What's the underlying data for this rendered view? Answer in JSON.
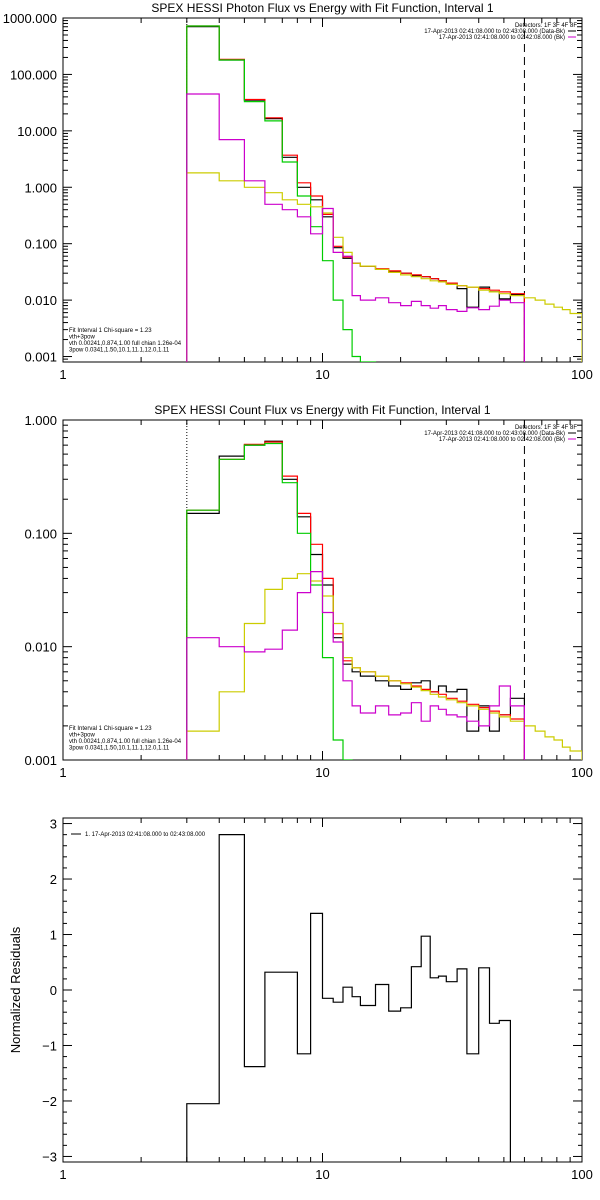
{
  "chart_data": [
    {
      "type": "line",
      "title": "SPEX HESSI Photon Flux vs Energy with Fit Function, Interval 1",
      "xscale": "log",
      "yscale": "log",
      "xlim": [
        1,
        100
      ],
      "ylim": [
        0.0008,
        1000
      ],
      "xticks": [
        {
          "v": 1,
          "label": "1"
        },
        {
          "v": 10,
          "label": "10"
        },
        {
          "v": 100,
          "label": "100"
        }
      ],
      "yticks": [
        {
          "v": 0.001,
          "label": "0.001"
        },
        {
          "v": 0.01,
          "label": "0.010"
        },
        {
          "v": 0.1,
          "label": "0.100"
        },
        {
          "v": 1,
          "label": "1.000"
        },
        {
          "v": 10,
          "label": "10.000"
        },
        {
          "v": 100,
          "label": "100.000"
        },
        {
          "v": 1000,
          "label": "1000.000"
        }
      ],
      "legend_tr": [
        "Detectors: 1F 3F 4F 8F",
        "17-Apr-2013 02:41:08.000 to 02:43:08.000 (Data-Bk)",
        "17-Apr-2013 02:41:08.000 to 02:42:08.000 (Bk)"
      ],
      "legend_bl": [
        "Fit Interval 1    Chi-square = 1.23",
        "vth+3pow",
        "vth 0.00241,0.874,1.00   full chian 1.26e-04",
        "3pow 0.0341,1.50,10.1,11.1,12.0,1.11"
      ],
      "vlines": [
        {
          "x": 3,
          "style": "dotted"
        },
        {
          "x": 60,
          "style": "dashed"
        }
      ],
      "edges": [
        3,
        4,
        5,
        6,
        7,
        8,
        9,
        10,
        11,
        12,
        13,
        14,
        16,
        18,
        20,
        22,
        24,
        26,
        28,
        30,
        33,
        36,
        40,
        44,
        48,
        53,
        60,
        66,
        72,
        78,
        84,
        90,
        100
      ],
      "series": [
        {
          "name": "Data-Bk",
          "color": "#000000",
          "values": [
            700,
            180,
            35,
            16.5,
            3.4,
            1.0,
            0.6,
            0.3,
            0.085,
            0.055,
            0.045,
            0.04,
            0.035,
            0.032,
            0.03,
            0.027,
            0.026,
            0.024,
            0.022,
            0.02,
            0.016,
            0.0075,
            0.017,
            0.014,
            0.0105,
            0.0125
          ]
        },
        {
          "name": "vth+3pow",
          "color": "#ff0000",
          "values": [
            720,
            185,
            36,
            17,
            3.7,
            1.2,
            0.7,
            0.33,
            0.09,
            0.058,
            0.045,
            0.04,
            0.036,
            0.033,
            0.03,
            0.028,
            0.026,
            0.024,
            0.022,
            0.02,
            0.018,
            0.017,
            0.016,
            0.015,
            0.014,
            0.013
          ]
        },
        {
          "name": "vth",
          "color": "#00cc00",
          "values": [
            720,
            180,
            33,
            15,
            2.8,
            0.7,
            0.2,
            0.05,
            0.01,
            0.003,
            0.001,
            0.0004
          ]
        },
        {
          "name": "3pow",
          "color": "#cccc00",
          "values": [
            1.8,
            1.3,
            1.0,
            0.8,
            0.6,
            0.5,
            0.45,
            0.35,
            0.13,
            0.07,
            0.045,
            0.04,
            0.035,
            0.031,
            0.028,
            0.026,
            0.024,
            0.022,
            0.021,
            0.019,
            0.018,
            0.017,
            0.015,
            0.014,
            0.013,
            0.012,
            0.011,
            0.01,
            0.0085,
            0.0075,
            0.0068,
            0.0058
          ]
        },
        {
          "name": "Bk",
          "color": "#cc00cc",
          "values": [
            45,
            7,
            1.3,
            0.5,
            0.4,
            0.3,
            0.15,
            0.42,
            0.07,
            0.06,
            0.012,
            0.01,
            0.011,
            0.009,
            0.008,
            0.0095,
            0.008,
            0.0072,
            0.008,
            0.0068,
            0.0063,
            0.0073,
            0.0068,
            0.0078,
            0.01,
            0.009
          ]
        }
      ]
    },
    {
      "type": "line",
      "title": "SPEX HESSI Count Flux vs Energy with Fit Function, Interval 1",
      "xscale": "log",
      "yscale": "log",
      "xlim": [
        1,
        100
      ],
      "ylim": [
        0.001,
        1
      ],
      "xticks": [
        {
          "v": 1,
          "label": "1"
        },
        {
          "v": 10,
          "label": "10"
        },
        {
          "v": 100,
          "label": "100"
        }
      ],
      "yticks": [
        {
          "v": 0.001,
          "label": "0.001"
        },
        {
          "v": 0.01,
          "label": "0.010"
        },
        {
          "v": 0.1,
          "label": "0.100"
        },
        {
          "v": 1,
          "label": "1.000"
        }
      ],
      "legend_tr": [
        "Detectors: 1F 3F 4F 8F",
        "17-Apr-2013 02:41:08.000 to 02:43:08.000 (Data-Bk)",
        "17-Apr-2013 02:41:08.000 to 02:42:08.000 (Bk)"
      ],
      "legend_bl": [
        "Fit Interval 1    Chi-square = 1.23",
        "vth+3pow",
        "vth 0.00241,0.874,1.00   full chian 1.26e-04",
        "3pow 0.0341,1.50,10.1,11.1,12.0,1.11"
      ],
      "vlines": [
        {
          "x": 3,
          "style": "dotted"
        },
        {
          "x": 60,
          "style": "dashed"
        }
      ],
      "edges": [
        3,
        4,
        5,
        6,
        7,
        8,
        9,
        10,
        11,
        12,
        13,
        14,
        16,
        18,
        20,
        22,
        24,
        26,
        28,
        30,
        33,
        36,
        40,
        44,
        48,
        53,
        60,
        66,
        72,
        78,
        84,
        90,
        100
      ],
      "series": [
        {
          "name": "Data-Bk",
          "color": "#000000",
          "values": [
            0.15,
            0.48,
            0.6,
            0.65,
            0.3,
            0.14,
            0.065,
            0.035,
            0.012,
            0.007,
            0.006,
            0.0055,
            0.005,
            0.0045,
            0.0042,
            0.0048,
            0.005,
            0.004,
            0.0045,
            0.004,
            0.0042,
            0.0018,
            0.003,
            0.0018,
            0.0025,
            0.0035
          ]
        },
        {
          "name": "vth+3pow",
          "color": "#ff0000",
          "values": [
            0.16,
            0.45,
            0.61,
            0.64,
            0.32,
            0.15,
            0.08,
            0.04,
            0.013,
            0.0075,
            0.0065,
            0.006,
            0.0055,
            0.005,
            0.0048,
            0.0045,
            0.0042,
            0.004,
            0.0038,
            0.0035,
            0.0033,
            0.0031,
            0.0029,
            0.0027,
            0.0025,
            0.0023
          ]
        },
        {
          "name": "vth",
          "color": "#00cc00",
          "values": [
            0.16,
            0.45,
            0.6,
            0.62,
            0.28,
            0.1,
            0.035,
            0.008,
            0.0015,
            0.0004
          ]
        },
        {
          "name": "3pow",
          "color": "#cccc00",
          "values": [
            0.0018,
            0.004,
            0.016,
            0.032,
            0.04,
            0.044,
            0.038,
            0.028,
            0.016,
            0.008,
            0.0065,
            0.006,
            0.0055,
            0.005,
            0.0047,
            0.0044,
            0.0041,
            0.0038,
            0.0036,
            0.0034,
            0.0032,
            0.003,
            0.0028,
            0.0026,
            0.0024,
            0.0022,
            0.002,
            0.0018,
            0.0016,
            0.0015,
            0.0013,
            0.0012
          ]
        },
        {
          "name": "Bk",
          "color": "#cc00cc",
          "values": [
            0.012,
            0.01,
            0.009,
            0.0095,
            0.014,
            0.03,
            0.046,
            0.02,
            0.011,
            0.005,
            0.003,
            0.0026,
            0.003,
            0.0025,
            0.0026,
            0.0032,
            0.0022,
            0.003,
            0.0028,
            0.0025,
            0.0024,
            0.0022,
            0.002,
            0.003,
            0.0045,
            0.003
          ]
        }
      ]
    },
    {
      "type": "line",
      "title": "",
      "ylabel": "Normalized Residuals",
      "xscale": "log",
      "yscale": "linear",
      "xlim": [
        1,
        100
      ],
      "ylim": [
        -3.1,
        3.1
      ],
      "xticks": [
        {
          "v": 1,
          "label": "1"
        },
        {
          "v": 10,
          "label": "10"
        },
        {
          "v": 100,
          "label": "100"
        }
      ],
      "yticks": [
        {
          "v": -3,
          "label": "−3"
        },
        {
          "v": -2,
          "label": "−2"
        },
        {
          "v": -1,
          "label": "−1"
        },
        {
          "v": 0,
          "label": "0"
        },
        {
          "v": 1,
          "label": "1"
        },
        {
          "v": 2,
          "label": "2"
        },
        {
          "v": 3,
          "label": "3"
        }
      ],
      "legend_tl": [
        "1. 17-Apr-2013 02:41:08.000 to 02:43:08.000"
      ],
      "edges": [
        3,
        4,
        5,
        6,
        7,
        8,
        9,
        10,
        11,
        12,
        13,
        14,
        16,
        18,
        20,
        22,
        24,
        26,
        28,
        30,
        33,
        36,
        40,
        44,
        48,
        53,
        60
      ],
      "series": [
        {
          "name": "1. 17-Apr-2013 02:41:08.000 to 02:43:08.000",
          "color": "#000000",
          "values": [
            -2.05,
            2.8,
            -1.38,
            0.32,
            0.32,
            -1.15,
            1.38,
            -0.15,
            -0.22,
            0.05,
            -0.12,
            -0.28,
            0.1,
            -0.38,
            -0.32,
            0.42,
            0.97,
            0.22,
            0.25,
            0.15,
            0.38,
            -1.15,
            0.4,
            -0.6,
            -0.55
          ]
        }
      ]
    }
  ]
}
